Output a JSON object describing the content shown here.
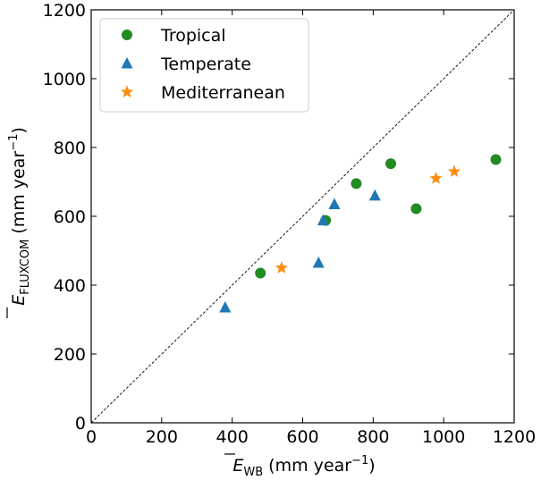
{
  "chart_data": {
    "type": "scatter",
    "title": "",
    "xlabel": {
      "symbol": "E",
      "subscript": "WB",
      "units_prefix": " (mm year",
      "units_exp": "−1",
      "units_suffix": ")"
    },
    "ylabel": {
      "symbol": "E",
      "subscript": "FLUXCOM",
      "units_prefix": " (mm year",
      "units_exp": "−1",
      "units_suffix": ")"
    },
    "xlim": [
      0,
      1200
    ],
    "ylim": [
      0,
      1200
    ],
    "xticks": [
      "0",
      "200",
      "400",
      "600",
      "800",
      "1000",
      "1200"
    ],
    "yticks": [
      "0",
      "200",
      "400",
      "600",
      "800",
      "1000",
      "1200"
    ],
    "grid": false,
    "legend_position": "top-left",
    "reference_line": "1:1 dashed",
    "series": [
      {
        "name": "Tropical",
        "marker": "circle",
        "color": "#228b22",
        "points": [
          [
            480,
            435
          ],
          [
            665,
            588
          ],
          [
            752,
            695
          ],
          [
            850,
            753
          ],
          [
            922,
            622
          ],
          [
            1148,
            765
          ]
        ]
      },
      {
        "name": "Temperate",
        "marker": "triangle",
        "color": "#1f77b4",
        "points": [
          [
            380,
            335
          ],
          [
            645,
            465
          ],
          [
            658,
            588
          ],
          [
            690,
            635
          ],
          [
            805,
            660
          ]
        ]
      },
      {
        "name": "Mediterranean",
        "marker": "star",
        "color": "#ff8c0f",
        "points": [
          [
            540,
            450
          ],
          [
            978,
            710
          ],
          [
            1030,
            730
          ]
        ]
      }
    ]
  }
}
